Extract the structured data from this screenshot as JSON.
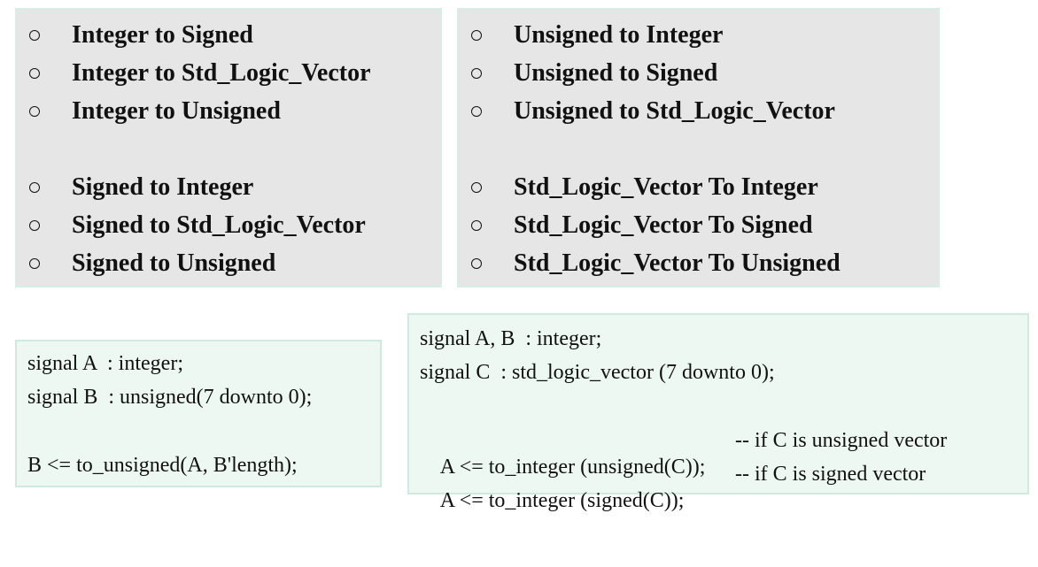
{
  "conversions_left": {
    "group1": [
      "Integer to Signed",
      "Integer to Std_Logic_Vector",
      "Integer to Unsigned"
    ],
    "group2": [
      "Signed to Integer",
      "Signed to Std_Logic_Vector",
      "Signed to Unsigned"
    ]
  },
  "conversions_right": {
    "group1": [
      "Unsigned to Integer",
      "Unsigned to Signed",
      "Unsigned to Std_Logic_Vector"
    ],
    "group2": [
      "Std_Logic_Vector To Integer",
      "Std_Logic_Vector To Signed",
      "Std_Logic_Vector To Unsigned"
    ]
  },
  "code_left": {
    "line1": "signal A  : integer;",
    "line2": "signal B  : unsigned(7 downto 0);",
    "line3": "B <= to_unsigned(A, B'length);"
  },
  "code_right": {
    "line1": "signal A, B  : integer;",
    "line2": "signal C  : std_logic_vector (7 downto 0);",
    "line3_code": "A <= to_integer (unsigned(C));",
    "line3_comment": "-- if C is unsigned vector",
    "line4_code": "A <= to_integer (signed(C));",
    "line4_comment": "-- if C is signed vector"
  }
}
